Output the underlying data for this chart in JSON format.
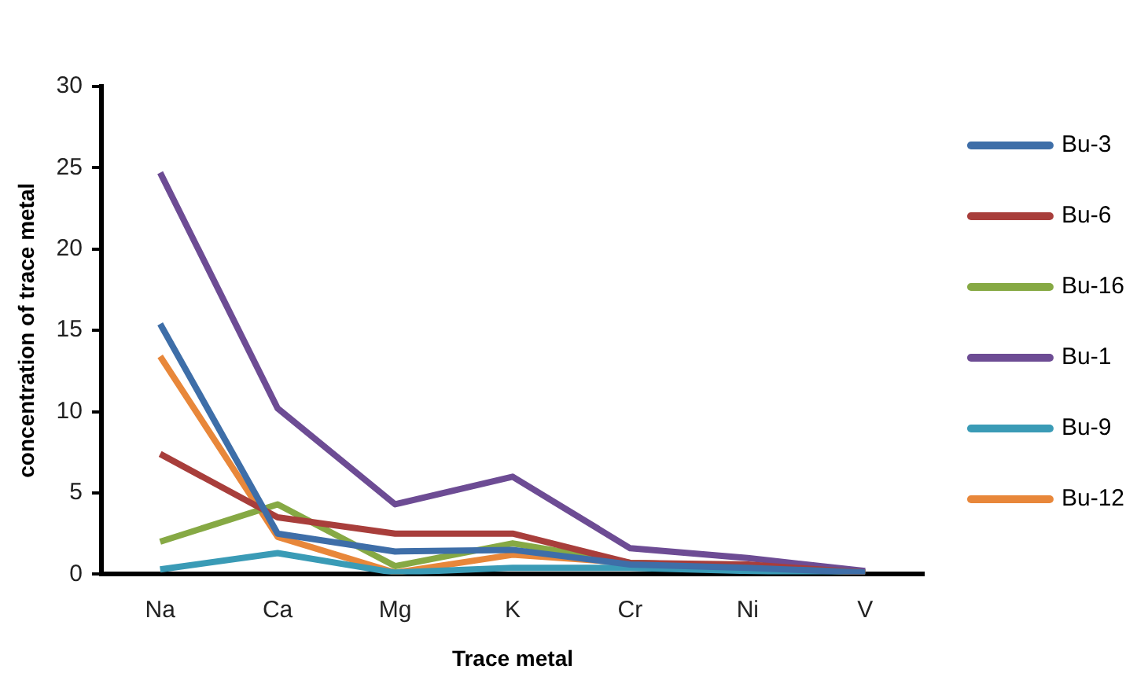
{
  "chart_data": {
    "type": "line",
    "xlabel": "Trace metal",
    "ylabel": "concentration of trace metal",
    "categories": [
      "Na",
      "Ca",
      "Mg",
      "K",
      "Cr",
      "Ni",
      "V"
    ],
    "series": [
      {
        "name": "Bu-3",
        "color": "#3e6ea8",
        "values": [
          15.4,
          2.5,
          1.4,
          1.5,
          0.6,
          0.4,
          0.1
        ]
      },
      {
        "name": "Bu-6",
        "color": "#a83e3b",
        "values": [
          7.4,
          3.5,
          2.5,
          2.5,
          0.7,
          0.6,
          0.1
        ]
      },
      {
        "name": "Bu-16",
        "color": "#86a944",
        "values": [
          2.0,
          4.3,
          0.5,
          1.9,
          0.7,
          0.5,
          0.1
        ]
      },
      {
        "name": "Bu-1",
        "color": "#6d4c94",
        "values": [
          24.7,
          10.2,
          4.3,
          6.0,
          1.6,
          1.0,
          0.2
        ]
      },
      {
        "name": "Bu-9",
        "color": "#3a9bb6",
        "values": [
          0.3,
          1.3,
          0.1,
          0.4,
          0.4,
          0.2,
          0.0
        ]
      },
      {
        "name": "Bu-12",
        "color": "#e8873a",
        "values": [
          13.4,
          2.3,
          0.1,
          1.2,
          0.7,
          0.5,
          0.1
        ]
      }
    ],
    "ylim": [
      0,
      30
    ],
    "yticks": [
      0,
      5,
      10,
      15,
      20,
      25,
      30
    ],
    "grid": false,
    "legend": "right",
    "marker": "none",
    "line_style": "solid"
  }
}
